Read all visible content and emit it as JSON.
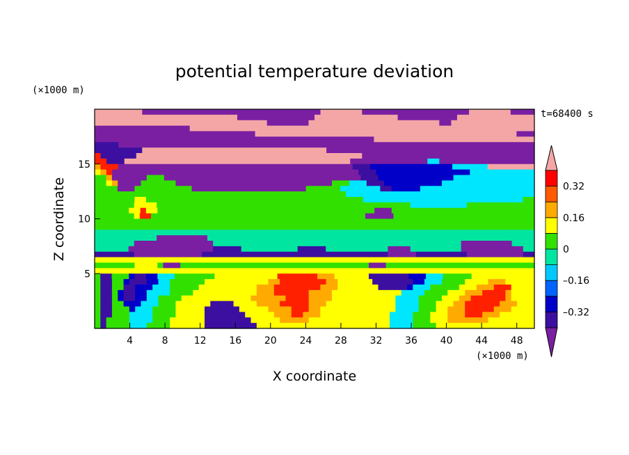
{
  "chart_data": {
    "type": "heatmap",
    "title": "potential temperature deviation",
    "xlabel": "X coordinate",
    "ylabel": "Z coordinate",
    "x_unit": "(×1000 m)",
    "y_unit": "(×1000 m)",
    "time_label": "t=68400 s",
    "xlim": [
      0,
      50
    ],
    "ylim": [
      0,
      20
    ],
    "x_ticks": [
      "4",
      "8",
      "12",
      "16",
      "20",
      "24",
      "28",
      "32",
      "36",
      "40",
      "44",
      "48"
    ],
    "y_ticks": [
      "5",
      "10",
      "15"
    ],
    "colorbar": {
      "levels": [
        -0.4,
        -0.32,
        -0.24,
        -0.16,
        -0.08,
        0,
        0.08,
        0.16,
        0.24,
        0.32,
        0.4
      ],
      "labels": [
        "0.32",
        "0.16",
        "0",
        "–0.16",
        "–0.32"
      ],
      "label_values": [
        0.32,
        0.16,
        0,
        -0.16,
        -0.32
      ],
      "colors": [
        "#7a1fa2",
        "#3c0fa0",
        "#0000c8",
        "#0064ff",
        "#00c8ff",
        "#00e6a0",
        "#32e000",
        "#ffff00",
        "#ffaa00",
        "#ff5a00",
        "#ff0000",
        "#f4a6a6"
      ]
    },
    "field_rows_top_to_bottom": [
      "ppppppppbbbbbbbbbbbbbbbbbbbbbbbbbbbbbbpppppppbbbbbbbbbbbbbbbbbbpppppppbbbb",
      "ppppppppppppppppppppppppbbbbbbbbbbbbbppppppppppppppbbbbbbbbbbppppppppppppp",
      "pppppppppppppppppppppppppppppbbbbbbbppppppppppppppppppppppbbpppppppppppppp",
      "bbbbbbbbbbbbbbbbpppppppppppppppppppppppppppppppppppppppppppppppppppppppppp",
      "bbbbbbbbbbbbbbbbbbbbbbbbbbbppppppppppppppppppppppppppppppppppppppppppppbbb",
      "bbbbbbbbbbbbbbbbbbbbbbbbbbbbbbbbbbbbbbbbbbbbbbbppppppppppppppppppppppppppp",
      "nnnnbbbbbbbbbbbbbbbbbbbbbbbbbbbbbbbbbbbbbbbbbbbbbbbbbbbbbbbbbbbbbbbbbbbbbb",
      "nnnnnnnnpppppppppppppppppppppppppppppppbbbbbbbbbbbbbbbbbbbbbbbbbbbbbbbbbbb",
      "rnnnnnnppppppppppppppppppppppppppppppppppppppbbbbbbbbbbbbbbbbbbbbbbbbbbbbb",
      "rrnnnppppppppppppppppppppppppppppppppppppppbbbbbbbbbbbbbccbbbbbbbbbbbbbbbb",
      "orrrppppppppppppppppppppppppppppppppppppppppnnnddddddddddddddccccccbbbbbbbb",
      "yorppppppppppppppppppppppppppppppppppppppppppnnnddddddddddddddddccccccccccc",
      "ggoppppppgggppppppppppppppppppppppppppppppppppnnndddddddddddddcccccccccccccc",
      "ggyoppppggggggpppppppppppppppppppppppppppgggcccnnnddddddddddcccccccccccccccc",
      "ggggpppggggggggggppppppppppppppppppppggggggcccccccnndddddcccccccccccccccccccc",
      "ggggggggggggggggggggggggggggggggggggggggggggccccccccccccccccccccccccccccccccc",
      "gggggggyyggggggggggggggggggggggggggggggggggggggccccccccccccccccccccccccccccgg",
      "gggggggyyyygggggggggggggggggggggggggggggggggggggggggggggccccccccccgggggggggggg",
      "ggggggyyryyggggggggggggggggggggggggggggggggggggggpppggggggggggggggggggggggggg",
      "gggggggyrrggggggggggggggggggggggggggggggggggggggpppppggggggggggggggggggggggggg",
      "gggggggggggggggggggggggggggggggggggggggggggggggggggggggggggggggggggggggggggggg",
      "gggggggggggggggggggggggggggggggggggggggggggggggggggggggggggggggggggggggggggggg",
      "tttttttttttttttttttttttttttttttttttttttttttttttttttttttttttttttttttttttttttttt",
      "tttttttttttppppppppptttttttttttttttttttttttttttttttttttttttttttttttttttttttttt",
      "tttttttppppppppppppppttttttttttttttttttttttttttttttttttttttttttttppppppppptttt",
      "ttttttpppppppppppppppnnnnnttttttttttnnnnntttttttttttpppptttttttttppppppppppptt",
      "nnnnnnnppppppppppppnnnnnnnnnnnnnnnnnnnnnnnnnnnnnnnnnpppppnnnnnnnnnppppppppppnn",
      "yyyyyyyyyyyyyyyyyyyyyyyyyyyyyyyyyyyyyyyyyyyyyyyyyyyyyyyyyyyyyyyyyyyyyyyyyyyyy",
      "gggggggyyyygpppgggggggggggggggggggggggggggggggggpppgggggggggggggggggggggggggg",
      "yyyyyyyyyyyyyyyyyyyyyyyyyyyyyyyyyyyyyyyyyyyyyyyyyyyyyyyyyyyyyyyyyyyyyyyyyyyyy",
      "gnngggdnnddcccgggggggyyyyyyyyyyyrrrrrrroooyyyyyynnnnnnndddcccgggggyyyyyyyyyyy",
      "gnnggdnnnddccggggggyyyyyyyyyyyoorrrrrrrrooyyyyyynnnnnnnddcccggggyyyyoooyyyyy",
      "gnnggnndddcccgggggyyyyyyyyyyooorrrrrrrroooyyyyyyynnnnndcccgggggyyyooorrryyyy",
      "gnngdnnddccccggggyyyyyyyyyyyooorrrrrrooooyyyyyyyyyyyyccccggggyyyooorrrroyyyy",
      "gnngdnnddccggggyyyyyyyyyyyyoooooorrrrooooyyyyyyyyyyyccccggggyyyoorrrrrroyyyy",
      "gnnggdddcccgggyyyyyynnnnyyyyoooorrrrroooyyyyyyyyyyyyccccgggyyyoorrrrrroooyyy",
      "gnngggdcccggggyyyyynnnnnnyyyyyoooorrrooyyyyyyyyyyyyyccccgggyyooorrrrroooyyyy",
      "gnngggccccggggyyyyynnnnnnnyyyyyooorroooyyyyyyyyyyyyccccgggyyyooorrroooyyyyyy",
      "gnggggccccgggyyyyyynnnnnnnnyyyyyoooooyyyyyyyyyyyyyyccccgggyyyoooooooyyyyyyyy",
      "gnggggcccggggyyyyyynnnnnnnnnyyyyyyyyyyyyyyyyyyyyyyyccccggggyyyyyyyyyyyyyyyyy"
    ]
  }
}
